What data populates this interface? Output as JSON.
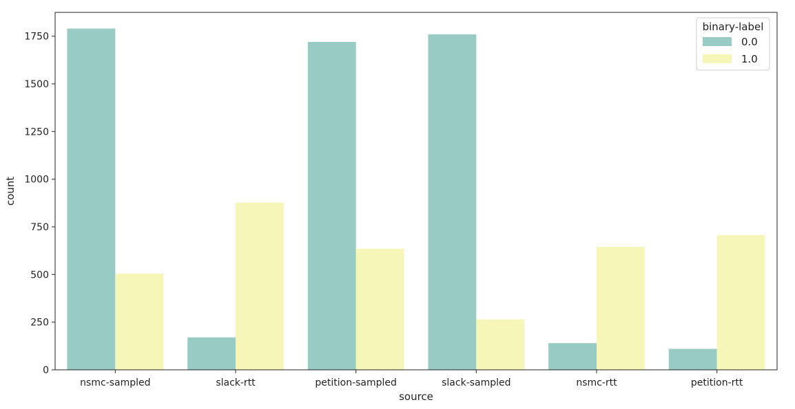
{
  "chart_data": {
    "type": "bar",
    "xlabel": "source",
    "ylabel": "count",
    "ylim": [
      0,
      1875
    ],
    "yticks": [
      0,
      250,
      500,
      750,
      1000,
      1250,
      1500,
      1750
    ],
    "categories": [
      "nsmc-sampled",
      "slack-rtt",
      "petition-sampled",
      "slack-sampled",
      "nsmc-rtt",
      "petition-rtt"
    ],
    "legend": {
      "title": "binary-label",
      "position": "top-right"
    },
    "grid": false,
    "series": [
      {
        "name": "0.0",
        "color": "#98cbc3",
        "values": [
          1790,
          170,
          1720,
          1760,
          140,
          110
        ]
      },
      {
        "name": "1.0",
        "color": "#f6f6b9",
        "values": [
          505,
          877,
          635,
          265,
          645,
          707
        ]
      }
    ]
  }
}
